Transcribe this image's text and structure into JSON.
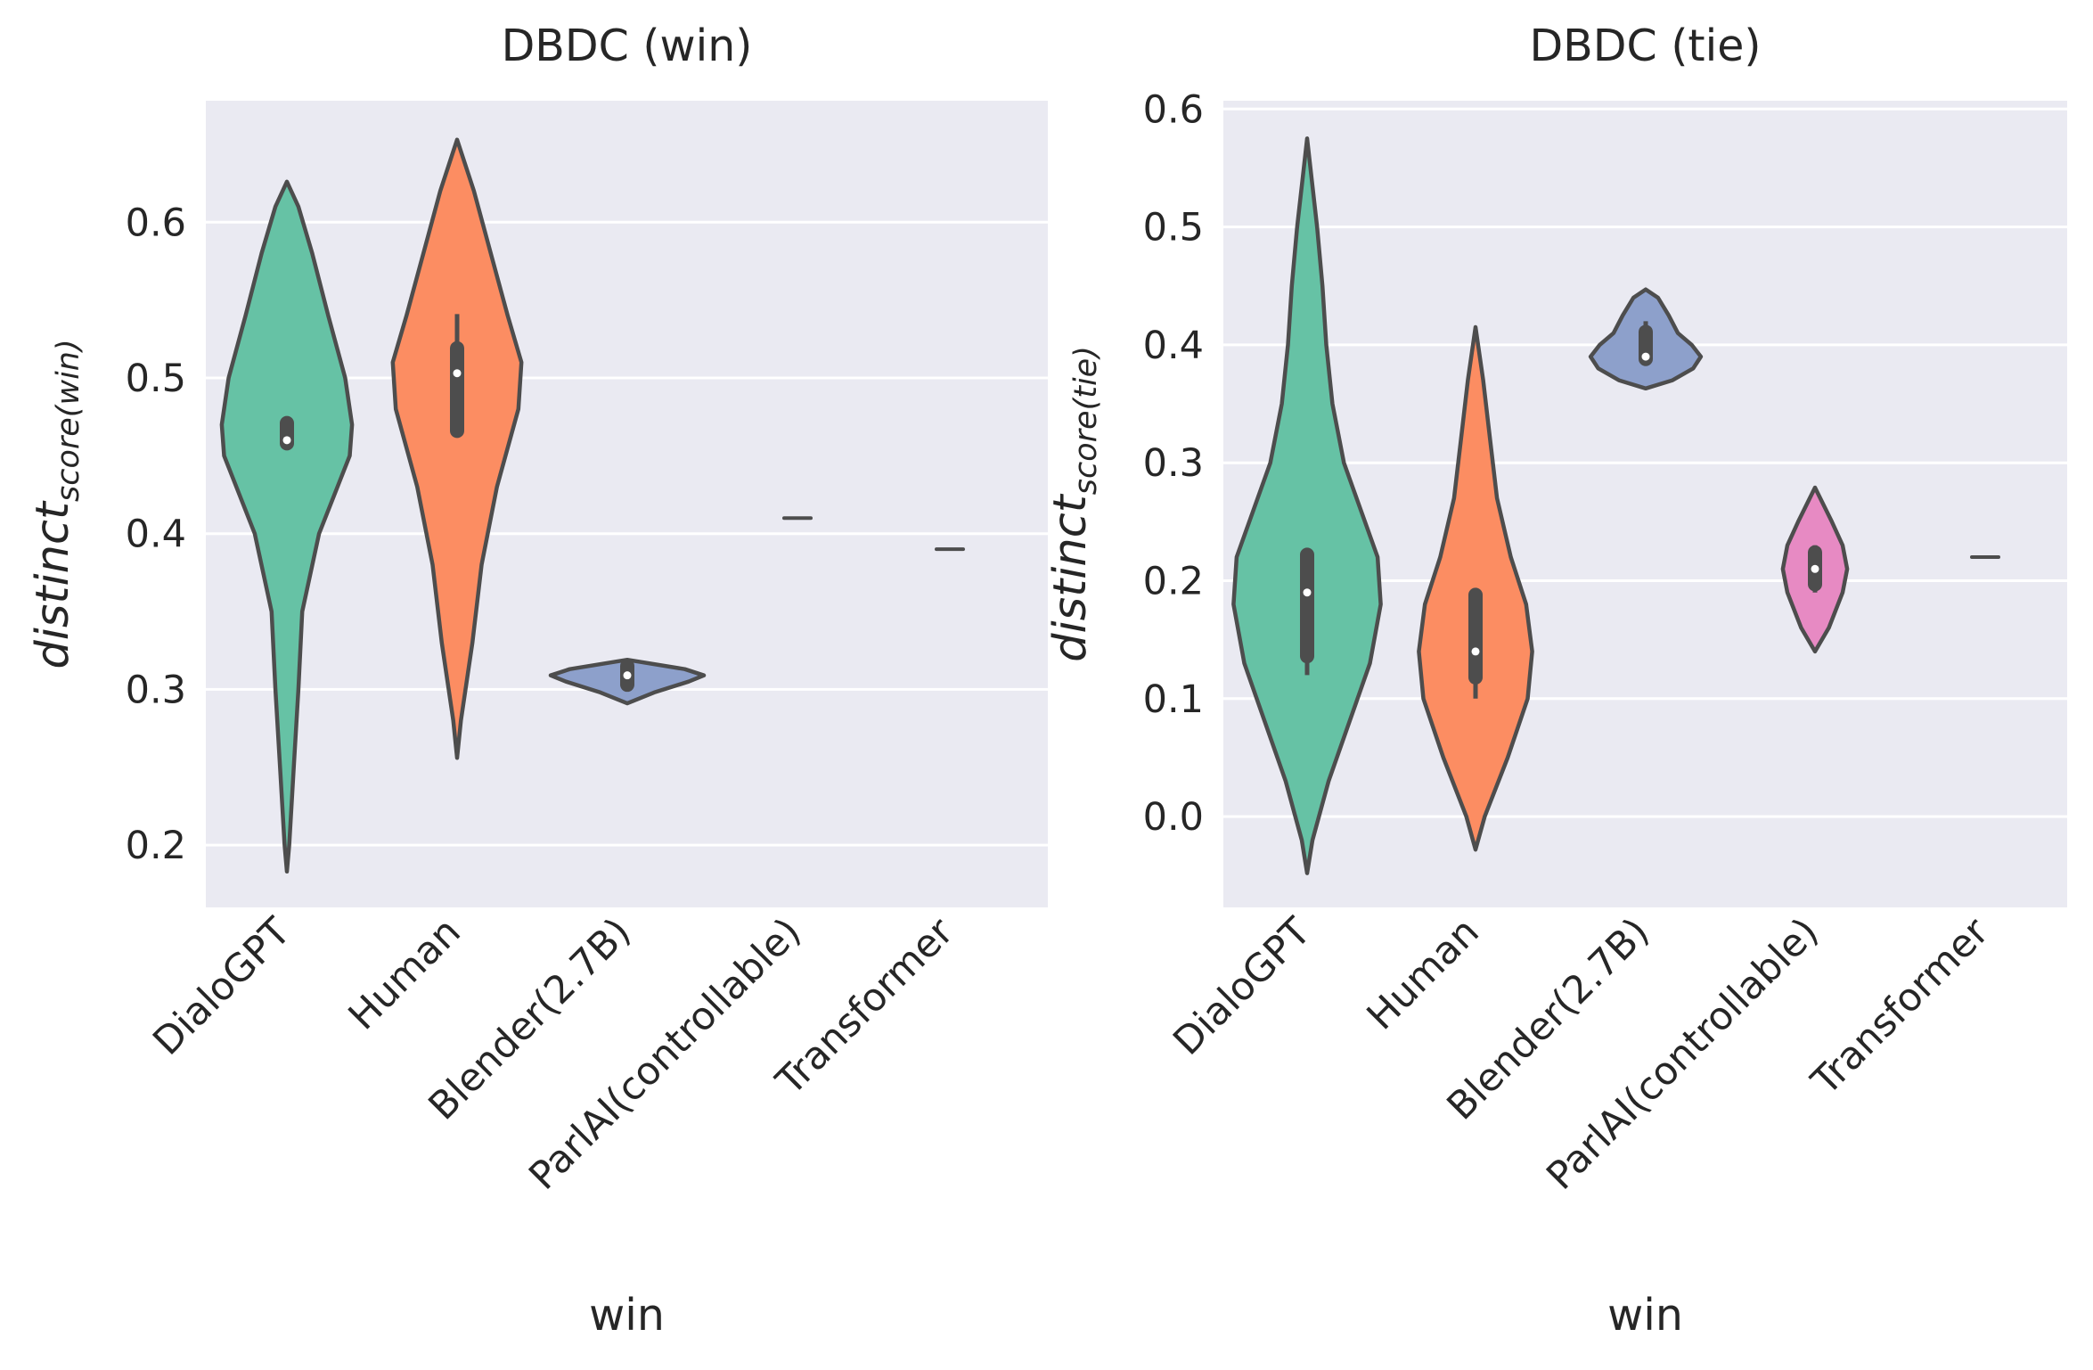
{
  "chart_data": [
    {
      "type": "violin",
      "title": "DBDC (win)",
      "xlabel": "win",
      "ylabel": {
        "base": "distinct",
        "subscript": "score(win)"
      },
      "ylim": [
        0.16,
        0.678
      ],
      "yticks": [
        "0.2",
        "0.3",
        "0.4",
        "0.5",
        "0.6"
      ],
      "grid": true,
      "categories": [
        "DialoGPT",
        "Human",
        "Blender(2.7B)",
        "ParlAI(controllable)",
        "Transformer"
      ],
      "colors": [
        "#66c2a5",
        "#fc8d62",
        "#8da0cb",
        "#e78ac3",
        "#a6d854"
      ],
      "violins": [
        {
          "category": "DialoGPT",
          "median": 0.46,
          "q1": 0.458,
          "q3": 0.471,
          "whisker_low": 0.458,
          "whisker_high": 0.471,
          "profile": [
            [
              0.183,
              0.0
            ],
            [
              0.2,
              0.03
            ],
            [
              0.25,
              0.09
            ],
            [
              0.3,
              0.15
            ],
            [
              0.35,
              0.2
            ],
            [
              0.4,
              0.42
            ],
            [
              0.45,
              0.82
            ],
            [
              0.47,
              0.85
            ],
            [
              0.5,
              0.76
            ],
            [
              0.54,
              0.54
            ],
            [
              0.58,
              0.33
            ],
            [
              0.61,
              0.15
            ],
            [
              0.626,
              0.0
            ]
          ]
        },
        {
          "category": "Human",
          "median": 0.503,
          "q1": 0.466,
          "q3": 0.519,
          "whisker_low": 0.466,
          "whisker_high": 0.541,
          "profile": [
            [
              0.256,
              0.0
            ],
            [
              0.28,
              0.05
            ],
            [
              0.33,
              0.2
            ],
            [
              0.38,
              0.32
            ],
            [
              0.43,
              0.52
            ],
            [
              0.48,
              0.8
            ],
            [
              0.51,
              0.84
            ],
            [
              0.54,
              0.66
            ],
            [
              0.58,
              0.44
            ],
            [
              0.62,
              0.22
            ],
            [
              0.653,
              0.0
            ]
          ]
        },
        {
          "category": "Blender(2.7B)",
          "median": 0.309,
          "q1": 0.303,
          "q3": 0.315,
          "whisker_low": 0.303,
          "whisker_high": 0.315,
          "profile": [
            [
              0.291,
              0.0
            ],
            [
              0.298,
              0.35
            ],
            [
              0.305,
              0.8
            ],
            [
              0.309,
              1.0
            ],
            [
              0.313,
              0.75
            ],
            [
              0.319,
              0.0
            ]
          ]
        },
        {
          "category": "ParlAI(controllable)",
          "median": 0.41,
          "single": true
        },
        {
          "category": "Transformer",
          "median": 0.39,
          "single": true
        }
      ]
    },
    {
      "type": "violin",
      "title": "DBDC (tie)",
      "xlabel": "win",
      "ylabel": {
        "base": "distinct",
        "subscript": "score(tie)"
      },
      "ylim": [
        -0.077,
        0.607
      ],
      "yticks": [
        "0.0",
        "0.1",
        "0.2",
        "0.3",
        "0.4",
        "0.5",
        "0.6"
      ],
      "grid": true,
      "categories": [
        "DialoGPT",
        "Human",
        "Blender(2.7B)",
        "ParlAI(controllable)",
        "Transformer"
      ],
      "colors": [
        "#66c2a5",
        "#fc8d62",
        "#8da0cb",
        "#e78ac3",
        "#a6d854"
      ],
      "violins": [
        {
          "category": "DialoGPT",
          "median": 0.19,
          "q1": 0.136,
          "q3": 0.222,
          "whisker_low": 0.12,
          "whisker_high": 0.222,
          "profile": [
            [
              -0.048,
              0.0
            ],
            [
              -0.02,
              0.07
            ],
            [
              0.03,
              0.28
            ],
            [
              0.08,
              0.55
            ],
            [
              0.13,
              0.82
            ],
            [
              0.18,
              0.96
            ],
            [
              0.22,
              0.92
            ],
            [
              0.26,
              0.7
            ],
            [
              0.3,
              0.48
            ],
            [
              0.35,
              0.33
            ],
            [
              0.4,
              0.25
            ],
            [
              0.45,
              0.2
            ],
            [
              0.5,
              0.13
            ],
            [
              0.54,
              0.06
            ],
            [
              0.575,
              0.0
            ]
          ]
        },
        {
          "category": "Human",
          "median": 0.14,
          "q1": 0.118,
          "q3": 0.188,
          "whisker_low": 0.1,
          "whisker_high": 0.188,
          "profile": [
            [
              -0.028,
              0.0
            ],
            [
              0.0,
              0.12
            ],
            [
              0.05,
              0.42
            ],
            [
              0.1,
              0.68
            ],
            [
              0.14,
              0.74
            ],
            [
              0.18,
              0.66
            ],
            [
              0.22,
              0.46
            ],
            [
              0.27,
              0.28
            ],
            [
              0.32,
              0.19
            ],
            [
              0.37,
              0.1
            ],
            [
              0.415,
              0.0
            ]
          ]
        },
        {
          "category": "Blender(2.7B)",
          "median": 0.39,
          "q1": 0.388,
          "q3": 0.411,
          "whisker_low": 0.388,
          "whisker_high": 0.42,
          "profile": [
            [
              0.363,
              0.0
            ],
            [
              0.37,
              0.35
            ],
            [
              0.38,
              0.62
            ],
            [
              0.39,
              0.72
            ],
            [
              0.4,
              0.6
            ],
            [
              0.41,
              0.42
            ],
            [
              0.425,
              0.3
            ],
            [
              0.44,
              0.16
            ],
            [
              0.447,
              0.0
            ]
          ]
        },
        {
          "category": "ParlAI(controllable)",
          "median": 0.21,
          "q1": 0.197,
          "q3": 0.224,
          "whisker_low": 0.19,
          "whisker_high": 0.23,
          "profile": [
            [
              0.14,
              0.0
            ],
            [
              0.16,
              0.18
            ],
            [
              0.19,
              0.36
            ],
            [
              0.21,
              0.42
            ],
            [
              0.23,
              0.36
            ],
            [
              0.25,
              0.22
            ],
            [
              0.279,
              0.0
            ]
          ]
        },
        {
          "category": "Transformer",
          "median": 0.22,
          "single": true
        }
      ]
    }
  ]
}
